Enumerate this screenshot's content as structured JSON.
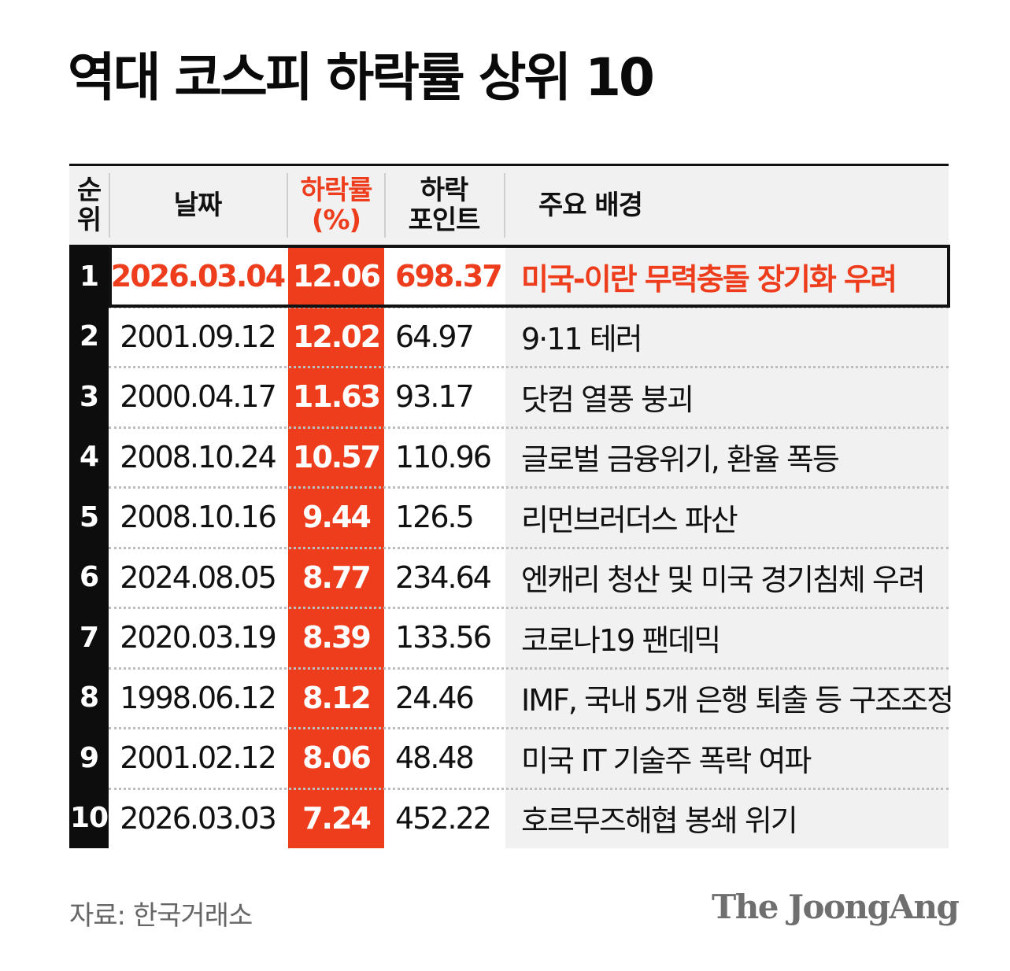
{
  "title": "역대 코스피 하락률 상위 10",
  "chart_data": {
    "type": "table",
    "title": "역대 코스피 하락률 상위 10",
    "columns": [
      "순위",
      "날짜",
      "하락률 (%)",
      "하락 포인트",
      "주요 배경"
    ],
    "header": {
      "rank": [
        "순",
        "위"
      ],
      "date": "날짜",
      "rate": [
        "하락률",
        "(%)"
      ],
      "points": [
        "하락",
        "포인트"
      ],
      "background": "주요 배경"
    },
    "rows": [
      {
        "rank": "1",
        "date": "2026.03.04",
        "rate": "12.06",
        "points": "698.37",
        "background": "미국-이란 무력충돌 장기화 우려"
      },
      {
        "rank": "2",
        "date": "2001.09.12",
        "rate": "12.02",
        "points": "64.97",
        "background": "9·11 테러"
      },
      {
        "rank": "3",
        "date": "2000.04.17",
        "rate": "11.63",
        "points": "93.17",
        "background": "닷컴 열풍 붕괴"
      },
      {
        "rank": "4",
        "date": "2008.10.24",
        "rate": "10.57",
        "points": "110.96",
        "background": "글로벌 금융위기, 환율 폭등"
      },
      {
        "rank": "5",
        "date": "2008.10.16",
        "rate": "9.44",
        "points": "126.5",
        "background": "리먼브러더스 파산"
      },
      {
        "rank": "6",
        "date": "2024.08.05",
        "rate": "8.77",
        "points": "234.64",
        "background": "엔캐리 청산 및 미국 경기침체 우려"
      },
      {
        "rank": "7",
        "date": "2020.03.19",
        "rate": "8.39",
        "points": "133.56",
        "background": "코로나19 팬데믹"
      },
      {
        "rank": "8",
        "date": "1998.06.12",
        "rate": "8.12",
        "points": "24.46",
        "background": "IMF, 국내 5개 은행 퇴출 등 구조조정"
      },
      {
        "rank": "9",
        "date": "2001.02.12",
        "rate": "8.06",
        "points": "48.48",
        "background": "미국 IT 기술주 폭락 여파"
      },
      {
        "rank": "10",
        "date": "2026.03.03",
        "rate": "7.24",
        "points": "452.22",
        "background": "호르무즈해협 봉쇄 위기"
      }
    ],
    "highlight_row": 0
  },
  "colors": {
    "accent": "#ee3d1c",
    "rank_bg": "#0d0d0d",
    "row_bg": "#f1f1f1"
  },
  "source": "자료: 한국거래소",
  "logo": "The JoongAng"
}
